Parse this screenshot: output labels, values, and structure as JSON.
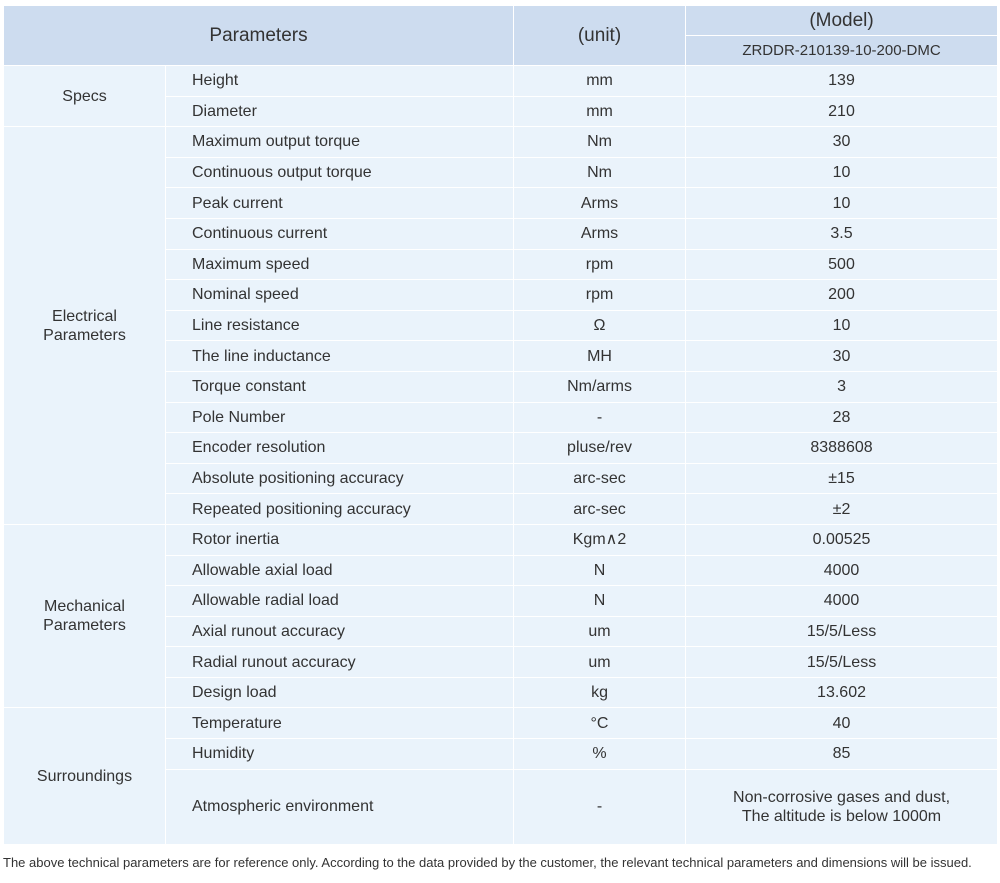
{
  "header": {
    "parameters": "Parameters",
    "unit": "(unit)",
    "model": "(Model)",
    "model_name": "ZRDDR-210139-10-200-DMC"
  },
  "groups": [
    {
      "name": "Specs",
      "rows": [
        [
          "Height",
          "mm",
          "139"
        ],
        [
          "Diameter",
          "mm",
          "210"
        ]
      ]
    },
    {
      "name": "Electrical\nParameters",
      "rows": [
        [
          "Maximum output torque",
          "Nm",
          "30"
        ],
        [
          "Continuous output torque",
          "Nm",
          "10"
        ],
        [
          "Peak current",
          "Arms",
          "10"
        ],
        [
          "Continuous current",
          "Arms",
          "3.5"
        ],
        [
          "Maximum speed",
          "rpm",
          "500"
        ],
        [
          "Nominal speed",
          "rpm",
          "200"
        ],
        [
          "Line resistance",
          "Ω",
          "10"
        ],
        [
          "The line inductance",
          "MH",
          "30"
        ],
        [
          "Torque constant",
          "Nm/arms",
          "3"
        ],
        [
          "Pole Number",
          "-",
          "28"
        ],
        [
          "Encoder resolution",
          "pluse/rev",
          "8388608"
        ],
        [
          "Absolute positioning accuracy",
          "arc-sec",
          "±15"
        ],
        [
          "Repeated positioning accuracy",
          "arc-sec",
          "±2"
        ]
      ]
    },
    {
      "name": "Mechanical\nParameters",
      "rows": [
        [
          "Rotor inertia",
          "Kgm∧2",
          "0.00525"
        ],
        [
          "Allowable axial load",
          "N",
          "4000"
        ],
        [
          "Allowable radial load",
          "N",
          "4000"
        ],
        [
          "Axial runout accuracy",
          "um",
          "15/5/Less"
        ],
        [
          "Radial runout accuracy",
          "um",
          "15/5/Less"
        ],
        [
          "Design load",
          "kg",
          "13.602"
        ]
      ]
    },
    {
      "name": "Surroundings",
      "rows": [
        [
          "Temperature",
          "°C",
          "40"
        ],
        [
          "Humidity",
          "%",
          "85"
        ],
        [
          "Atmospheric environment",
          "-",
          "Non-corrosive gases and dust,\nThe altitude is below 1000m"
        ]
      ]
    }
  ],
  "footnote": "The above technical parameters are for reference only. According to the data provided by the customer, the relevant technical parameters and dimensions will be issued."
}
